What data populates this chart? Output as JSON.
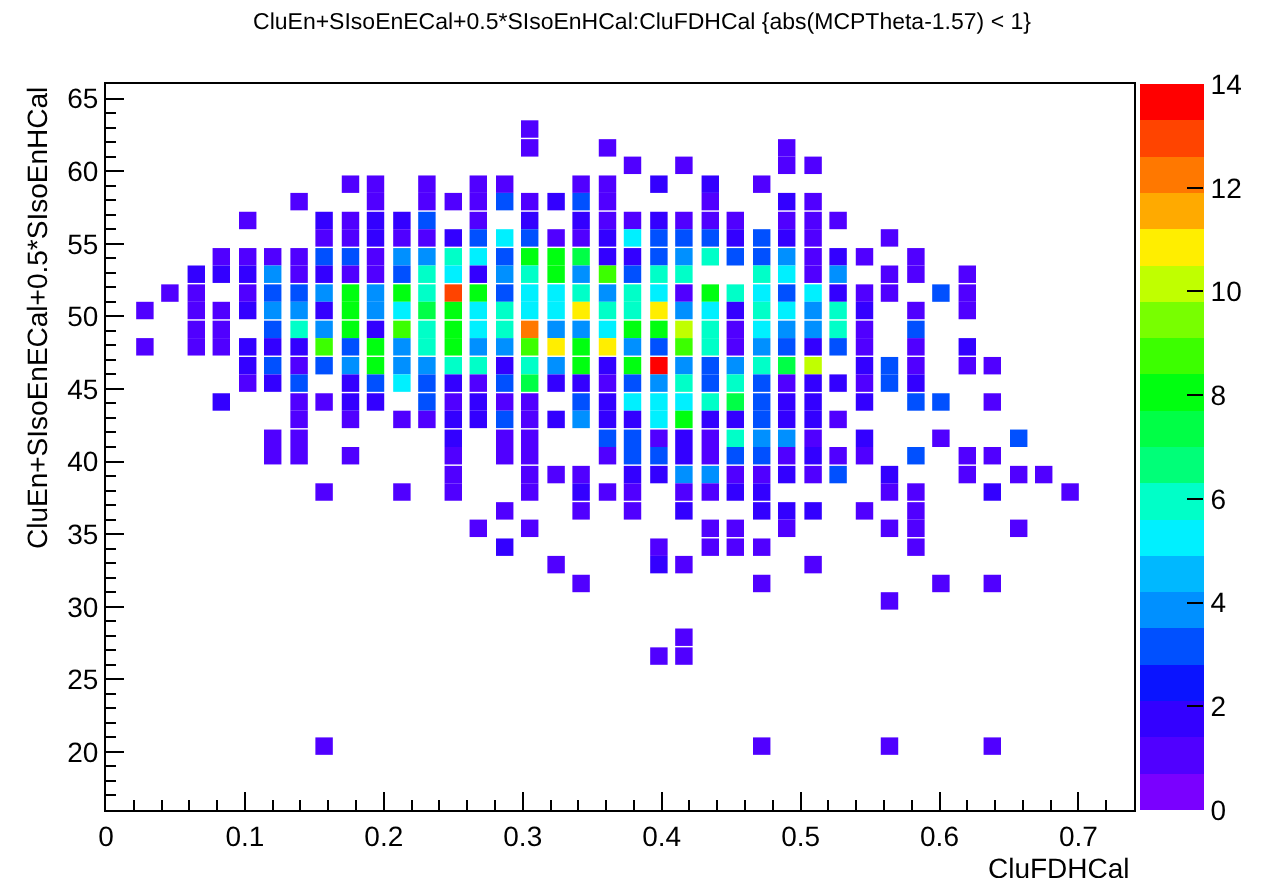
{
  "chart_data": {
    "type": "scatter",
    "title": "CluEn+SIsoEnECal+0.5*SIsoEnHCal:CluFDHCal {abs(MCPTheta-1.57) < 1}",
    "xlabel": "CluFDHCal",
    "ylabel": "CluEn+SIsoEnECal+0.5*SIsoEnHCal",
    "xlim": [
      0,
      0.74
    ],
    "xticks": [
      0,
      0.1,
      0.2,
      0.3,
      0.4,
      0.5,
      0.6,
      0.7
    ],
    "ylim": [
      16,
      66
    ],
    "yticks": [
      20,
      25,
      30,
      35,
      40,
      45,
      50,
      55,
      60,
      65
    ],
    "clim": [
      0,
      14
    ],
    "cticks": [
      0,
      2,
      4,
      6,
      8,
      10,
      12,
      14
    ],
    "marker": "square",
    "grid": false,
    "x": [
      0.305,
      0.305,
      0.361,
      0.49,
      0.379,
      0.416,
      0.49,
      0.509,
      0.176,
      0.194,
      0.231,
      0.268,
      0.287,
      0.342,
      0.361,
      0.398,
      0.435,
      0.472,
      0.139,
      0.194,
      0.231,
      0.25,
      0.268,
      0.287,
      0.305,
      0.324,
      0.342,
      0.361,
      0.435,
      0.49,
      0.509,
      0.102,
      0.157,
      0.176,
      0.194,
      0.213,
      0.231,
      0.268,
      0.305,
      0.342,
      0.361,
      0.379,
      0.398,
      0.416,
      0.435,
      0.453,
      0.49,
      0.509,
      0.527,
      0.157,
      0.176,
      0.194,
      0.213,
      0.231,
      0.25,
      0.268,
      0.287,
      0.305,
      0.324,
      0.342,
      0.361,
      0.379,
      0.398,
      0.416,
      0.435,
      0.453,
      0.472,
      0.49,
      0.509,
      0.564,
      0.083,
      0.102,
      0.12,
      0.139,
      0.157,
      0.176,
      0.194,
      0.213,
      0.231,
      0.25,
      0.268,
      0.287,
      0.305,
      0.324,
      0.342,
      0.361,
      0.379,
      0.398,
      0.416,
      0.435,
      0.453,
      0.472,
      0.49,
      0.509,
      0.527,
      0.546,
      0.583,
      0.065,
      0.083,
      0.102,
      0.12,
      0.139,
      0.157,
      0.176,
      0.194,
      0.213,
      0.231,
      0.25,
      0.268,
      0.287,
      0.305,
      0.324,
      0.342,
      0.361,
      0.379,
      0.398,
      0.416,
      0.472,
      0.49,
      0.509,
      0.527,
      0.564,
      0.583,
      0.62,
      0.046,
      0.065,
      0.102,
      0.12,
      0.139,
      0.157,
      0.176,
      0.194,
      0.213,
      0.231,
      0.25,
      0.268,
      0.287,
      0.305,
      0.324,
      0.342,
      0.361,
      0.379,
      0.398,
      0.416,
      0.435,
      0.453,
      0.472,
      0.49,
      0.509,
      0.527,
      0.546,
      0.564,
      0.601,
      0.62,
      0.028,
      0.065,
      0.083,
      0.102,
      0.12,
      0.139,
      0.157,
      0.176,
      0.194,
      0.213,
      0.231,
      0.25,
      0.268,
      0.287,
      0.305,
      0.324,
      0.342,
      0.361,
      0.379,
      0.398,
      0.416,
      0.435,
      0.453,
      0.472,
      0.49,
      0.509,
      0.527,
      0.546,
      0.583,
      0.62,
      0.065,
      0.083,
      0.12,
      0.139,
      0.157,
      0.176,
      0.194,
      0.213,
      0.231,
      0.25,
      0.268,
      0.287,
      0.305,
      0.324,
      0.342,
      0.361,
      0.379,
      0.398,
      0.416,
      0.435,
      0.453,
      0.472,
      0.49,
      0.509,
      0.527,
      0.546,
      0.583,
      0.028,
      0.065,
      0.083,
      0.102,
      0.12,
      0.139,
      0.157,
      0.176,
      0.194,
      0.213,
      0.231,
      0.25,
      0.268,
      0.287,
      0.305,
      0.324,
      0.342,
      0.361,
      0.379,
      0.398,
      0.416,
      0.435,
      0.453,
      0.472,
      0.49,
      0.509,
      0.527,
      0.546,
      0.583,
      0.62,
      0.102,
      0.12,
      0.139,
      0.157,
      0.176,
      0.194,
      0.213,
      0.231,
      0.25,
      0.268,
      0.287,
      0.305,
      0.324,
      0.342,
      0.361,
      0.379,
      0.398,
      0.416,
      0.435,
      0.453,
      0.472,
      0.49,
      0.509,
      0.546,
      0.564,
      0.583,
      0.62,
      0.638,
      0.102,
      0.12,
      0.139,
      0.176,
      0.194,
      0.213,
      0.231,
      0.25,
      0.268,
      0.287,
      0.305,
      0.324,
      0.342,
      0.361,
      0.379,
      0.398,
      0.416,
      0.435,
      0.453,
      0.472,
      0.49,
      0.509,
      0.527,
      0.546,
      0.564,
      0.583,
      0.083,
      0.139,
      0.157,
      0.176,
      0.194,
      0.231,
      0.25,
      0.268,
      0.287,
      0.305,
      0.342,
      0.361,
      0.379,
      0.398,
      0.416,
      0.435,
      0.453,
      0.472,
      0.49,
      0.509,
      0.546,
      0.583,
      0.601,
      0.638,
      0.139,
      0.176,
      0.213,
      0.231,
      0.25,
      0.268,
      0.287,
      0.305,
      0.324,
      0.342,
      0.361,
      0.379,
      0.398,
      0.416,
      0.435,
      0.453,
      0.472,
      0.49,
      0.509,
      0.527,
      0.12,
      0.139,
      0.25,
      0.287,
      0.305,
      0.361,
      0.379,
      0.398,
      0.416,
      0.435,
      0.453,
      0.472,
      0.49,
      0.509,
      0.546,
      0.601,
      0.657,
      0.12,
      0.139,
      0.176,
      0.25,
      0.287,
      0.305,
      0.361,
      0.379,
      0.398,
      0.416,
      0.435,
      0.453,
      0.472,
      0.49,
      0.509,
      0.527,
      0.546,
      0.583,
      0.62,
      0.638,
      0.25,
      0.305,
      0.324,
      0.342,
      0.379,
      0.398,
      0.416,
      0.435,
      0.453,
      0.472,
      0.49,
      0.509,
      0.527,
      0.564,
      0.62,
      0.657,
      0.675,
      0.157,
      0.213,
      0.25,
      0.305,
      0.342,
      0.361,
      0.379,
      0.416,
      0.435,
      0.453,
      0.472,
      0.564,
      0.583,
      0.638,
      0.694,
      0.287,
      0.342,
      0.379,
      0.416,
      0.472,
      0.49,
      0.509,
      0.546,
      0.583,
      0.268,
      0.305,
      0.435,
      0.453,
      0.49,
      0.564,
      0.583,
      0.657,
      0.287,
      0.398,
      0.435,
      0.453,
      0.472,
      0.583,
      0.324,
      0.398,
      0.416,
      0.509,
      0.342,
      0.472,
      0.601,
      0.638,
      0.564,
      0.416,
      0.398,
      0.416,
      0.157,
      0.472,
      0.564,
      0.638
    ],
    "values": [
      62.9,
      61.6,
      61.6,
      61.6,
      60.4,
      60.4,
      60.4,
      60.4,
      59.1,
      59.1,
      59.1,
      59.1,
      59.1,
      59.1,
      59.1,
      59.1,
      59.1,
      59.1,
      57.9,
      57.9,
      57.9,
      57.9,
      57.9,
      57.9,
      57.9,
      57.9,
      57.9,
      57.9,
      57.9,
      57.9,
      57.9,
      56.6,
      56.6,
      56.6,
      56.6,
      56.6,
      56.6,
      56.6,
      56.6,
      56.6,
      56.6,
      56.6,
      56.6,
      56.6,
      56.6,
      56.6,
      56.6,
      56.6,
      56.6,
      55.4,
      55.4,
      55.4,
      55.4,
      55.4,
      55.4,
      55.4,
      55.4,
      55.4,
      55.4,
      55.4,
      55.4,
      55.4,
      55.4,
      55.4,
      55.4,
      55.4,
      55.4,
      55.4,
      55.4,
      55.4,
      54.1,
      54.1,
      54.1,
      54.1,
      54.1,
      54.1,
      54.1,
      54.1,
      54.1,
      54.1,
      54.1,
      54.1,
      54.1,
      54.1,
      54.1,
      54.1,
      54.1,
      54.1,
      54.1,
      54.1,
      54.1,
      54.1,
      54.1,
      54.1,
      54.1,
      54.1,
      54.1,
      52.9,
      52.9,
      52.9,
      52.9,
      52.9,
      52.9,
      52.9,
      52.9,
      52.9,
      52.9,
      52.9,
      52.9,
      52.9,
      52.9,
      52.9,
      52.9,
      52.9,
      52.9,
      52.9,
      52.9,
      52.9,
      52.9,
      52.9,
      52.9,
      52.9,
      52.9,
      52.9,
      51.6,
      51.6,
      51.6,
      51.6,
      51.6,
      51.6,
      51.6,
      51.6,
      51.6,
      51.6,
      51.6,
      51.6,
      51.6,
      51.6,
      51.6,
      51.6,
      51.6,
      51.6,
      51.6,
      51.6,
      51.6,
      51.6,
      51.6,
      51.6,
      51.6,
      51.6,
      51.6,
      51.6,
      51.6,
      51.6,
      50.4,
      50.4,
      50.4,
      50.4,
      50.4,
      50.4,
      50.4,
      50.4,
      50.4,
      50.4,
      50.4,
      50.4,
      50.4,
      50.4,
      50.4,
      50.4,
      50.4,
      50.4,
      50.4,
      50.4,
      50.4,
      50.4,
      50.4,
      50.4,
      50.4,
      50.4,
      50.4,
      50.4,
      50.4,
      50.4,
      49.1,
      49.1,
      49.1,
      49.1,
      49.1,
      49.1,
      49.1,
      49.1,
      49.1,
      49.1,
      49.1,
      49.1,
      49.1,
      49.1,
      49.1,
      49.1,
      49.1,
      49.1,
      49.1,
      49.1,
      49.1,
      49.1,
      49.1,
      49.1,
      49.1,
      49.1,
      49.1,
      47.9,
      47.9,
      47.9,
      47.9,
      47.9,
      47.9,
      47.9,
      47.9,
      47.9,
      47.9,
      47.9,
      47.9,
      47.9,
      47.9,
      47.9,
      47.9,
      47.9,
      47.9,
      47.9,
      47.9,
      47.9,
      47.9,
      47.9,
      47.9,
      47.9,
      47.9,
      47.9,
      47.9,
      47.9,
      47.9,
      46.6,
      46.6,
      46.6,
      46.6,
      46.6,
      46.6,
      46.6,
      46.6,
      46.6,
      46.6,
      46.6,
      46.6,
      46.6,
      46.6,
      46.6,
      46.6,
      46.6,
      46.6,
      46.6,
      46.6,
      46.6,
      46.6,
      46.6,
      46.6,
      46.6,
      46.6,
      46.6,
      46.6,
      45.4,
      45.4,
      45.4,
      45.4,
      45.4,
      45.4,
      45.4,
      45.4,
      45.4,
      45.4,
      45.4,
      45.4,
      45.4,
      45.4,
      45.4,
      45.4,
      45.4,
      45.4,
      45.4,
      45.4,
      45.4,
      45.4,
      45.4,
      45.4,
      45.4,
      45.4,
      44.1,
      44.1,
      44.1,
      44.1,
      44.1,
      44.1,
      44.1,
      44.1,
      44.1,
      44.1,
      44.1,
      44.1,
      44.1,
      44.1,
      44.1,
      44.1,
      44.1,
      44.1,
      44.1,
      44.1,
      44.1,
      44.1,
      44.1,
      44.1,
      42.9,
      42.9,
      42.9,
      42.9,
      42.9,
      42.9,
      42.9,
      42.9,
      42.9,
      42.9,
      42.9,
      42.9,
      42.9,
      42.9,
      42.9,
      42.9,
      42.9,
      42.9,
      42.9,
      42.9,
      41.6,
      41.6,
      41.6,
      41.6,
      41.6,
      41.6,
      41.6,
      41.6,
      41.6,
      41.6,
      41.6,
      41.6,
      41.6,
      41.6,
      41.6,
      41.6,
      41.6,
      40.4,
      40.4,
      40.4,
      40.4,
      40.4,
      40.4,
      40.4,
      40.4,
      40.4,
      40.4,
      40.4,
      40.4,
      40.4,
      40.4,
      40.4,
      40.4,
      40.4,
      40.4,
      40.4,
      40.4,
      39.1,
      39.1,
      39.1,
      39.1,
      39.1,
      39.1,
      39.1,
      39.1,
      39.1,
      39.1,
      39.1,
      39.1,
      39.1,
      39.1,
      39.1,
      39.1,
      39.1,
      37.9,
      37.9,
      37.9,
      37.9,
      37.9,
      37.9,
      37.9,
      37.9,
      37.9,
      37.9,
      37.9,
      37.9,
      37.9,
      37.9,
      37.9,
      36.6,
      36.6,
      36.6,
      36.6,
      36.6,
      36.6,
      36.6,
      36.6,
      36.6,
      35.4,
      35.4,
      35.4,
      35.4,
      35.4,
      35.4,
      35.4,
      35.4,
      34.1,
      34.1,
      34.1,
      34.1,
      34.1,
      34.1,
      32.9,
      32.9,
      32.9,
      32.9,
      31.6,
      31.6,
      31.6,
      31.6,
      30.4,
      27.9,
      26.6,
      26.6,
      20.4,
      20.4,
      20.4,
      20.4
    ],
    "cvalues": [
      1,
      1,
      1,
      1,
      1,
      1,
      1,
      1,
      1,
      1,
      1,
      1,
      1,
      1,
      1,
      2,
      2,
      1,
      1,
      1,
      1,
      1,
      1,
      3,
      1,
      2,
      3,
      1,
      1,
      2,
      1,
      1,
      2,
      1,
      2,
      2,
      3,
      1,
      2,
      2,
      1,
      1,
      2,
      1,
      1,
      1,
      1,
      1,
      1,
      1,
      1,
      2,
      1,
      1,
      2,
      3,
      5,
      3,
      1,
      1,
      2,
      5,
      3,
      3,
      3,
      2,
      3,
      2,
      1,
      1,
      1,
      1,
      1,
      1,
      3,
      3,
      1,
      4,
      4,
      6,
      5,
      3,
      8,
      8,
      7,
      2,
      2,
      3,
      4,
      6,
      3,
      3,
      4,
      1,
      2,
      1,
      1,
      2,
      2,
      2,
      4,
      1,
      2,
      1,
      1,
      3,
      6,
      5,
      2,
      4,
      6,
      8,
      4,
      9,
      3,
      6,
      6,
      6,
      5,
      1,
      4,
      1,
      1,
      1,
      1,
      1,
      1,
      3,
      3,
      4,
      8,
      4,
      8,
      6,
      13,
      8,
      3,
      5,
      5,
      6,
      4,
      6,
      5,
      1,
      8,
      6,
      5,
      3,
      5,
      2,
      1,
      1,
      3,
      1,
      1,
      1,
      1,
      2,
      4,
      4,
      2,
      8,
      4,
      5,
      7,
      8,
      5,
      6,
      5,
      5,
      11,
      6,
      6,
      11,
      4,
      5,
      2,
      6,
      5,
      4,
      6,
      2,
      1,
      1,
      1,
      1,
      3,
      6,
      4,
      8,
      2,
      9,
      6,
      8,
      5,
      6,
      12,
      4,
      4,
      5,
      8,
      8,
      10,
      6,
      1,
      5,
      4,
      4,
      6,
      1,
      3,
      1,
      1,
      1,
      2,
      2,
      2,
      9,
      3,
      8,
      4,
      6,
      8,
      4,
      4,
      9,
      11,
      8,
      11,
      4,
      3,
      9,
      6,
      1,
      4,
      3,
      2,
      3,
      1,
      1,
      2,
      2,
      3,
      1,
      3,
      4,
      8,
      4,
      4,
      6,
      6,
      2,
      6,
      4,
      8,
      2,
      8,
      14,
      4,
      3,
      4,
      6,
      7,
      10,
      2,
      3,
      1,
      1,
      1,
      1,
      2,
      3,
      2,
      3,
      5,
      3,
      2,
      1,
      3,
      7,
      2,
      2,
      1,
      3,
      4,
      6,
      3,
      6,
      3,
      1,
      2,
      2,
      1,
      3,
      2,
      2,
      1,
      1,
      2,
      2,
      3,
      1,
      2,
      1,
      1,
      3,
      2,
      5,
      5,
      5,
      6,
      7,
      3,
      2,
      2,
      2,
      3,
      3,
      1,
      1,
      1,
      1,
      1,
      2,
      2,
      3,
      1,
      2,
      4,
      2,
      2,
      5,
      8,
      2,
      2,
      3,
      2,
      2,
      1,
      1,
      1,
      2,
      1,
      1,
      3,
      3,
      1,
      2,
      1,
      6,
      4,
      4,
      1,
      2,
      1,
      3,
      1,
      1,
      1,
      1,
      1,
      1,
      1,
      3,
      3,
      2,
      1,
      3,
      3,
      1,
      2,
      1,
      1,
      3,
      1,
      1,
      1,
      1,
      1,
      1,
      2,
      2,
      4,
      4,
      1,
      1,
      2,
      1,
      3,
      2,
      1,
      1,
      1,
      1,
      1,
      1,
      1,
      2,
      1,
      1,
      1,
      1,
      2,
      2,
      1,
      1,
      2,
      1,
      1,
      1,
      1,
      2,
      2,
      2,
      2,
      1,
      1,
      1,
      1,
      1,
      1,
      1,
      1,
      1,
      1,
      2,
      1,
      1,
      1,
      1,
      1,
      1,
      2,
      1,
      1,
      1,
      1,
      1,
      1,
      1,
      1,
      1,
      1,
      1,
      1,
      1,
      1
    ]
  }
}
